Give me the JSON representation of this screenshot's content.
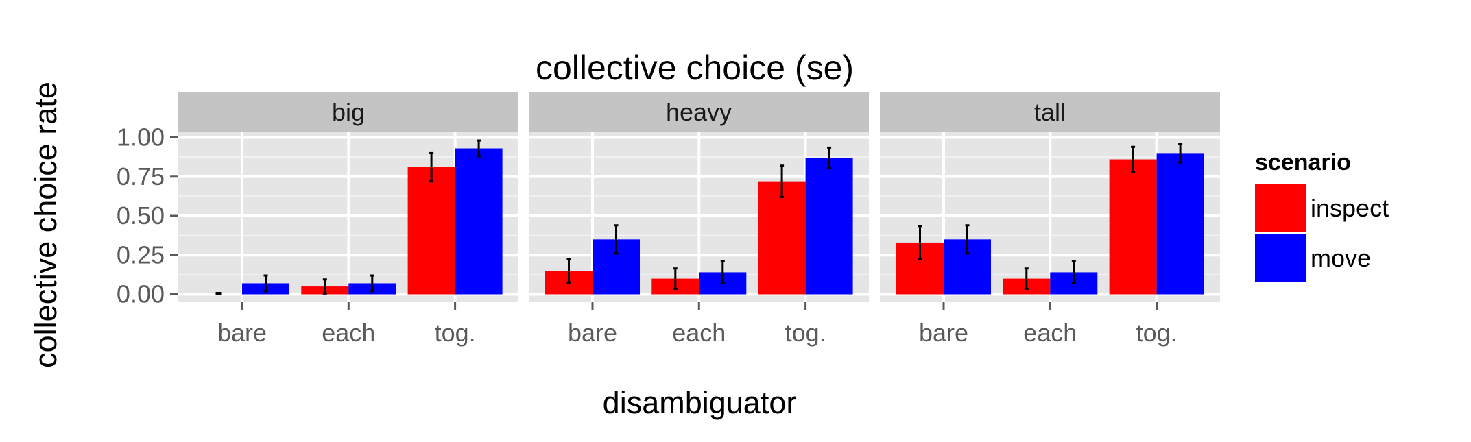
{
  "chart_data": {
    "type": "bar",
    "title": "collective choice (se)",
    "xlabel": "disambiguator",
    "ylabel": "collective choice rate",
    "ylim": [
      0,
      1.1
    ],
    "yticks": [
      "0.00",
      "0.25",
      "0.50",
      "0.75",
      "1.00"
    ],
    "ytick_values": [
      0,
      0.25,
      0.5,
      0.75,
      1.0
    ],
    "categories": [
      "bare",
      "each",
      "tog."
    ],
    "legend": {
      "title": "scenario",
      "placement": "right",
      "entries": [
        {
          "name": "inspect",
          "color": "#ff0000"
        },
        {
          "name": "move",
          "color": "#0000ff"
        }
      ]
    },
    "grid": true,
    "panel_background": "#e5e5e5",
    "strip_background": "#c4c4c4",
    "facets": [
      {
        "label": "big",
        "series": [
          {
            "name": "inspect",
            "values": [
              0.0,
              0.05,
              0.81
            ],
            "err": [
              0.0,
              0.045,
              0.09
            ]
          },
          {
            "name": "move",
            "values": [
              0.07,
              0.07,
              0.93
            ],
            "err": [
              0.05,
              0.05,
              0.05
            ]
          }
        ]
      },
      {
        "label": "heavy",
        "series": [
          {
            "name": "inspect",
            "values": [
              0.15,
              0.1,
              0.72
            ],
            "err": [
              0.075,
              0.065,
              0.1
            ]
          },
          {
            "name": "move",
            "values": [
              0.35,
              0.14,
              0.87
            ],
            "err": [
              0.09,
              0.07,
              0.065
            ]
          }
        ]
      },
      {
        "label": "tall",
        "series": [
          {
            "name": "inspect",
            "values": [
              0.33,
              0.1,
              0.86
            ],
            "err": [
              0.105,
              0.065,
              0.08
            ]
          },
          {
            "name": "move",
            "values": [
              0.35,
              0.14,
              0.9
            ],
            "err": [
              0.09,
              0.07,
              0.06
            ]
          }
        ]
      }
    ]
  }
}
